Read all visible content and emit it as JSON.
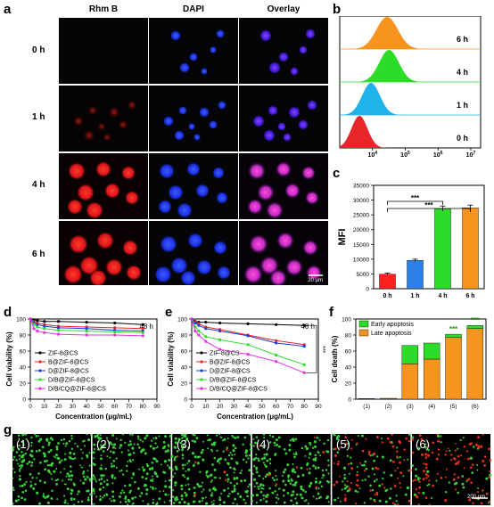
{
  "panel_labels": [
    "a",
    "b",
    "c",
    "d",
    "e",
    "f",
    "g"
  ],
  "panel_a": {
    "columns": [
      "Rhm B",
      "DAPI",
      "Overlay"
    ],
    "rows": [
      "0 h",
      "1 h",
      "4 h",
      "6 h"
    ],
    "scale_bar": "20 μm"
  },
  "panel_g": {
    "images": [
      "(1)",
      "(2)",
      "(3)",
      "(4)",
      "(5)",
      "(6)"
    ],
    "scale_bar": "200 μm"
  },
  "colors": {
    "red": "#e8262a",
    "blue": "#2b7fe6",
    "green": "#2ddc29",
    "orange": "#f7941d",
    "cyan": "#1fb3ea"
  },
  "chart_data": [
    {
      "id": "b",
      "type": "area",
      "title": "",
      "xlabel": "",
      "ylabel": "",
      "x_scale": "log",
      "x_ticks": [
        "10^4",
        "10^5",
        "10^6",
        "10^7"
      ],
      "x_tick_values": [
        10000,
        100000,
        1000000,
        10000000
      ],
      "xlim": [
        1000,
        20000000
      ],
      "series": [
        {
          "name": "0 h",
          "color": "#e8262a",
          "peak_x": 4000
        },
        {
          "name": "1 h",
          "color": "#1fb3ea",
          "peak_x": 9000
        },
        {
          "name": "4 h",
          "color": "#2ddc29",
          "peak_x": 32000
        },
        {
          "name": "6 h",
          "color": "#f7941d",
          "peak_x": 28000
        }
      ]
    },
    {
      "id": "c",
      "type": "bar",
      "categories": [
        "0 h",
        "1 h",
        "4 h",
        "6 h"
      ],
      "values": [
        4900,
        9600,
        27100,
        27400
      ],
      "errors": [
        400,
        400,
        900,
        900
      ],
      "colors": [
        "#ff2020",
        "#2b7fe6",
        "#2ddc29",
        "#f7941d"
      ],
      "ylabel": "MFI",
      "ylim": [
        0,
        35000
      ],
      "y_ticks": [
        "0",
        "5000",
        "10000",
        "15000",
        "20000",
        "25000",
        "30000",
        "35000"
      ],
      "y_tick_values": [
        0,
        5000,
        10000,
        15000,
        20000,
        25000,
        30000,
        35000
      ],
      "significance": [
        {
          "from": "0 h",
          "to": "4 h",
          "label": "***"
        },
        {
          "from": "0 h",
          "to": "6 h",
          "label": "***"
        }
      ]
    },
    {
      "id": "d",
      "type": "line",
      "xlabel": "Concentration (μg/mL)",
      "ylabel": "Cell viability (%)",
      "annotation": "48 h",
      "xlim": [
        0,
        90
      ],
      "ylim": [
        0,
        100
      ],
      "x_ticks": [
        "0",
        "10",
        "20",
        "30",
        "40",
        "50",
        "60",
        "70",
        "80",
        "90"
      ],
      "x_tick_values": [
        0,
        10,
        20,
        30,
        40,
        50,
        60,
        70,
        80,
        90
      ],
      "y_ticks": [
        "0",
        "20",
        "40",
        "60",
        "80",
        "100"
      ],
      "y_tick_values": [
        0,
        20,
        40,
        60,
        80,
        100
      ],
      "x": [
        0,
        2.5,
        5,
        10,
        20,
        40,
        60,
        80
      ],
      "series": [
        {
          "name": "ZIF-8@CS",
          "color": "#000000",
          "values": [
            100,
            99,
            98,
            97,
            97,
            96,
            95,
            93
          ]
        },
        {
          "name": "B@ZIF-8@CS",
          "color": "#e8262a",
          "values": [
            100,
            97,
            95,
            93,
            91,
            90,
            89,
            88
          ]
        },
        {
          "name": "D@ZIF-8@CS",
          "color": "#1c3fd8",
          "values": [
            100,
            95,
            93,
            91,
            89,
            88,
            86,
            85
          ]
        },
        {
          "name": "D/B@ZIF-8@CS",
          "color": "#2ddc29",
          "values": [
            100,
            93,
            90,
            88,
            86,
            85,
            84,
            83
          ]
        },
        {
          "name": "D/B/CQ@ZIF-8@CS",
          "color": "#e62ee6",
          "values": [
            100,
            88,
            85,
            83,
            81,
            80,
            80,
            79
          ]
        }
      ]
    },
    {
      "id": "e",
      "type": "line",
      "xlabel": "Concentration (μg/mL)",
      "ylabel": "Cell viability (%)",
      "annotation": "48 h",
      "significance": "***",
      "xlim": [
        0,
        90
      ],
      "ylim": [
        0,
        100
      ],
      "x_ticks": [
        "0",
        "10",
        "20",
        "30",
        "40",
        "50",
        "60",
        "70",
        "80",
        "90"
      ],
      "x_tick_values": [
        0,
        10,
        20,
        30,
        40,
        50,
        60,
        70,
        80,
        90
      ],
      "y_ticks": [
        "0",
        "20",
        "40",
        "60",
        "80",
        "100"
      ],
      "y_tick_values": [
        0,
        20,
        40,
        60,
        80,
        100
      ],
      "x": [
        0,
        2.5,
        5,
        10,
        20,
        40,
        60,
        80
      ],
      "series": [
        {
          "name": "ZIF-8@CS",
          "color": "#000000",
          "values": [
            100,
            97,
            96,
            96,
            95,
            94,
            93,
            92
          ]
        },
        {
          "name": "B@ZIF-8@CS",
          "color": "#e8262a",
          "values": [
            100,
            96,
            94,
            90,
            87,
            80,
            73,
            68
          ]
        },
        {
          "name": "D@ZIF-8@CS",
          "color": "#1c3fd8",
          "values": [
            100,
            95,
            92,
            88,
            85,
            79,
            70,
            66
          ]
        },
        {
          "name": "D/B@ZIF-8@CS",
          "color": "#2ddc29",
          "values": [
            100,
            90,
            85,
            78,
            74,
            68,
            55,
            43
          ]
        },
        {
          "name": "D/B/CQ@ZIF-8@CS",
          "color": "#e62ee6",
          "values": [
            100,
            85,
            80,
            72,
            62,
            56,
            47,
            33
          ]
        }
      ]
    },
    {
      "id": "f",
      "type": "bar",
      "stacked": true,
      "categories": [
        "(1)",
        "(2)",
        "(3)",
        "(4)",
        "(5)",
        "(6)"
      ],
      "ylabel": "Cell death (%)",
      "ylim": [
        0,
        100
      ],
      "y_ticks": [
        "0",
        "20",
        "40",
        "60",
        "80",
        "100"
      ],
      "y_tick_values": [
        0,
        20,
        40,
        60,
        80,
        100
      ],
      "series": [
        {
          "name": "Late apoptosis",
          "color": "#f7941d",
          "values": [
            0.5,
            0.8,
            44,
            50,
            77,
            88
          ]
        },
        {
          "name": "Early apoptosis",
          "color": "#2ddc29",
          "values": [
            0.2,
            0.3,
            23,
            20,
            4,
            4
          ]
        }
      ],
      "significance": [
        {
          "category": "(5)",
          "label": "***"
        },
        {
          "category": "(6)",
          "label": "***"
        }
      ]
    }
  ]
}
